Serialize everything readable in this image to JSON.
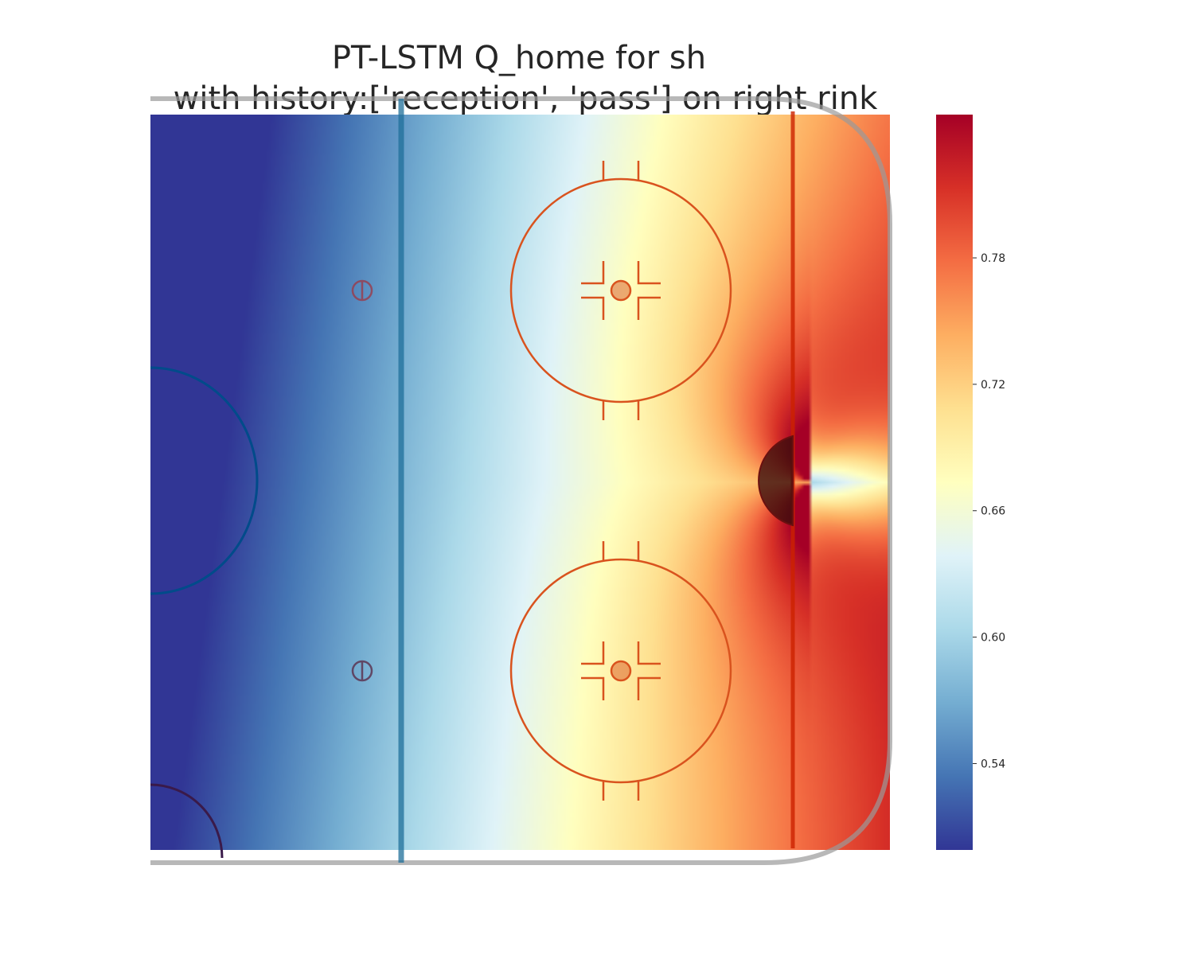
{
  "chart_data": {
    "type": "heatmap",
    "title": "PT-LSTM Q_home for sh",
    "subtitle": "with history:['reception', 'pass'] on right rink",
    "xlabel": "",
    "ylabel": "",
    "grid": false,
    "colormap": "RdYlBu_r",
    "colorbar": {
      "vmin": 0.499,
      "vmax": 0.848,
      "ticks": [
        0.54,
        0.6,
        0.66,
        0.72,
        0.78
      ],
      "tick_labels": [
        "0.54",
        "0.60",
        "0.66",
        "0.72",
        "0.78"
      ],
      "colors": [
        "#313695",
        "#4575b4",
        "#74add1",
        "#abd9e9",
        "#e0f3f8",
        "#ffffbf",
        "#fee090",
        "#fdae61",
        "#f46d43",
        "#d73027",
        "#a50026"
      ]
    },
    "surface": {
      "x_range": [
        0,
        100
      ],
      "y_range": [
        -42.5,
        42.5
      ],
      "net": {
        "x": 89,
        "y": 0
      },
      "base_value": 0.66,
      "x_gradient_per_unit": 0.0032,
      "y_gradient_per_unit": 0.0005,
      "peak_value": 0.84,
      "value_behind_net": 0.6
    },
    "background": "right half of hockey rink"
  }
}
